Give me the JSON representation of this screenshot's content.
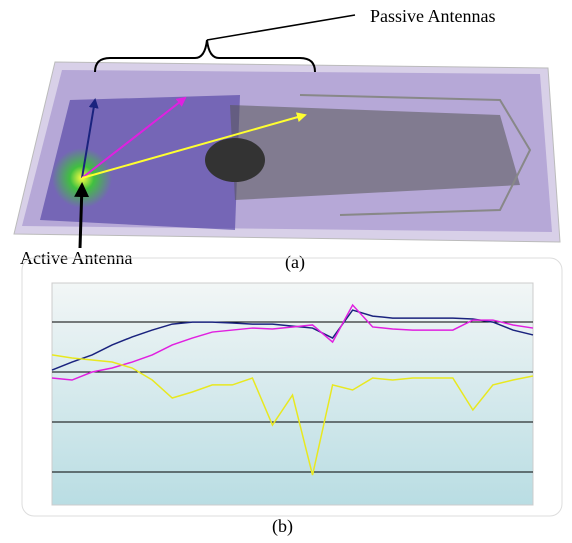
{
  "figure": {
    "passive_label": "Passive Antennas",
    "active_label": "Active Antenna",
    "caption_a": "(a)",
    "caption_b": "(b)"
  },
  "chart_data": {
    "type": "line",
    "ylim": [
      0,
      100
    ],
    "series": [
      {
        "color": "#1a237e",
        "values": [
          60.8,
          64.4,
          67.6,
          72.1,
          75.7,
          78.8,
          81.5,
          82.4,
          82.4,
          82.0,
          81.5,
          81.5,
          80.6,
          79.7,
          75.2,
          87.8,
          85.1,
          84.2,
          84.2,
          84.2,
          84.2,
          83.8,
          82.4,
          78.8,
          76.6
        ]
      },
      {
        "color": "#e020e0",
        "values": [
          57.2,
          56.3,
          59.9,
          61.7,
          64.4,
          67.6,
          72.1,
          75.2,
          77.9,
          78.8,
          79.7,
          79.3,
          80.2,
          81.1,
          73.4,
          90.1,
          80.2,
          79.3,
          78.8,
          78.8,
          78.8,
          83.3,
          83.3,
          81.1,
          79.7
        ]
      },
      {
        "color": "#e8e820",
        "values": [
          67.6,
          66.2,
          65.3,
          64.4,
          61.7,
          56.3,
          48.2,
          50.9,
          54.1,
          54.1,
          57.2,
          36.0,
          49.5,
          13.5,
          54.1,
          51.8,
          57.2,
          56.3,
          57.2,
          57.2,
          57.2,
          42.8,
          54.1,
          56.3,
          58.1
        ]
      }
    ]
  }
}
